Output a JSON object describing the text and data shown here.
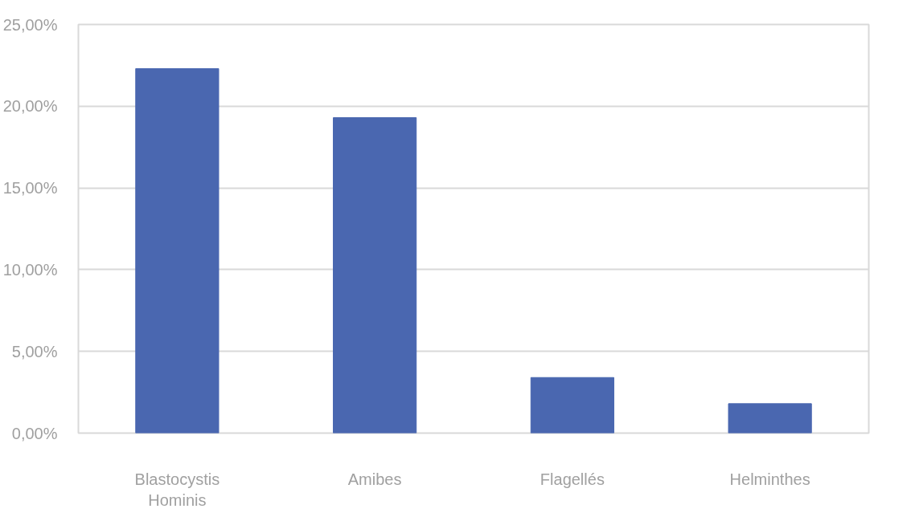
{
  "chart_data": {
    "type": "bar",
    "categories": [
      "Blastocystis Hominis",
      "Amibes",
      "Flagellés",
      "Helminthes"
    ],
    "values": [
      22.3,
      19.3,
      3.4,
      1.8
    ],
    "color": "#4a67b0",
    "ylim": [
      0,
      25
    ],
    "yticks": [
      {
        "value": 0,
        "label": "0,00%"
      },
      {
        "value": 5,
        "label": "5,00%"
      },
      {
        "value": 10,
        "label": "10,00%"
      },
      {
        "value": 15,
        "label": "15,00%"
      },
      {
        "value": 20,
        "label": "20,00%"
      },
      {
        "value": 25,
        "label": "25,00%"
      }
    ],
    "grid": "y"
  }
}
